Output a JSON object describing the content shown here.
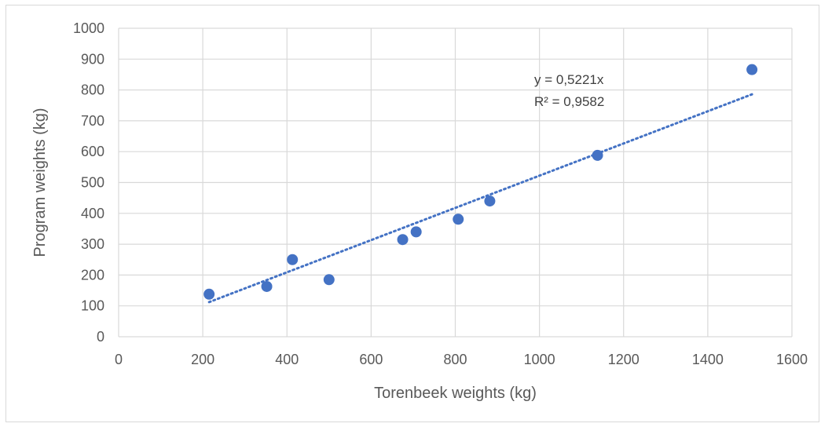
{
  "chart_data": {
    "type": "scatter",
    "title": "",
    "xlabel": "Torenbeek weights (kg)",
    "ylabel": "Program weights (kg)",
    "xlim": [
      0,
      1600
    ],
    "ylim": [
      0,
      1000
    ],
    "x_ticks": [
      0,
      200,
      400,
      600,
      800,
      1000,
      1200,
      1400,
      1600
    ],
    "y_ticks": [
      0,
      100,
      200,
      300,
      400,
      500,
      600,
      700,
      800,
      900,
      1000
    ],
    "grid": true,
    "legend": "none",
    "series": [
      {
        "points": [
          {
            "x": 215,
            "y": 138
          },
          {
            "x": 352,
            "y": 163
          },
          {
            "x": 413,
            "y": 250
          },
          {
            "x": 500,
            "y": 185
          },
          {
            "x": 675,
            "y": 315
          },
          {
            "x": 707,
            "y": 340
          },
          {
            "x": 807,
            "y": 381
          },
          {
            "x": 882,
            "y": 440
          },
          {
            "x": 1138,
            "y": 588
          },
          {
            "x": 1505,
            "y": 866
          }
        ],
        "color": "#4472c4"
      }
    ],
    "trendline": {
      "type": "linear",
      "slope": 0.5221,
      "intercept": 0,
      "x_range": [
        215,
        1505
      ],
      "style": "dotted",
      "color": "#4472c4",
      "equation_label": "y = 0,5221x",
      "r2_label": "R² = 0,9582"
    }
  }
}
